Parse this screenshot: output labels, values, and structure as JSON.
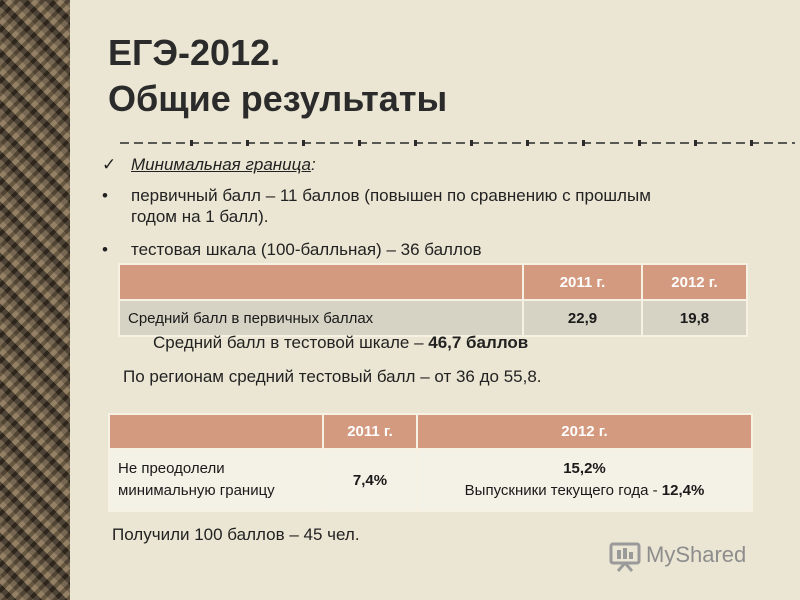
{
  "title_line1": "ЕГЭ-2012.",
  "title_line2": "Общие результаты",
  "check_item": {
    "underlined": "Минимальная граница",
    "suffix": ":"
  },
  "bullets": [
    {
      "line1": "первичный балл – 11 баллов (повышен по сравнению с прошлым",
      "line2": "годом на 1 балл)."
    },
    {
      "line1": "тестовая шкала (100-балльная) – 36 баллов"
    }
  ],
  "table1": {
    "headers": [
      "",
      "2011 г.",
      "2012 г."
    ],
    "row": [
      "Средний балл  в первичных баллах",
      "22,9",
      "19,8"
    ]
  },
  "avg_test": {
    "prefix": "Средний балл в тестовой шкале – ",
    "value": "46,7 баллов"
  },
  "regions": "По регионам средний тестовый балл – от 36 до 55,8.",
  "table2": {
    "headers": [
      "",
      "2011 г.",
      "2012 г."
    ],
    "label_line1": "Не преодолели",
    "label_line2": "минимальную границу",
    "val_2011": "7,4%",
    "val_2012": "15,2%",
    "note_prefix": "Выпускники текущего года - ",
    "note_value": "12,4%"
  },
  "got100": "Получили 100 баллов – 45 чел.",
  "logo_text": "MyShared",
  "colors": {
    "header_fill": "#d39a80",
    "row_fill": "#d6d2c4",
    "background": "#ebe6d3"
  }
}
